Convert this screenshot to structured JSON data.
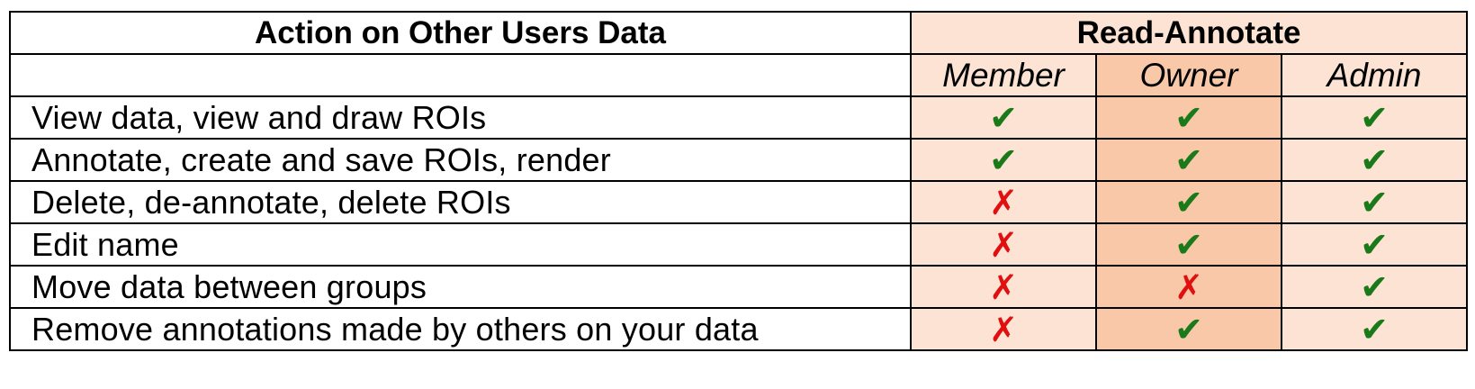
{
  "table": {
    "header": {
      "action_title": "Action on Other Users Data",
      "group_title": "Read-Annotate"
    },
    "roles": [
      "Member",
      "Owner",
      "Admin"
    ],
    "rows": [
      {
        "action": "View data, view and draw ROIs",
        "member": "✔",
        "owner": "✔",
        "admin": "✔"
      },
      {
        "action": "Annotate, create and save ROIs, render",
        "member": "✔",
        "owner": "✔",
        "admin": "✔"
      },
      {
        "action": "Delete, de-annotate, delete ROIs",
        "member": "✗",
        "owner": "✔",
        "admin": "✔"
      },
      {
        "action": "Edit name",
        "member": "✗",
        "owner": "✔",
        "admin": "✔"
      },
      {
        "action": "Move data between groups",
        "member": "✗",
        "owner": "✗",
        "admin": "✔"
      },
      {
        "action": "Remove annotations made by others on your data",
        "member": "✗",
        "owner": "✔",
        "admin": "✔"
      }
    ],
    "colors": {
      "member_admin_bg": "#fce3d3",
      "owner_bg": "#f8c8a8",
      "check": "#1a7a1a",
      "cross": "#e01010"
    }
  }
}
